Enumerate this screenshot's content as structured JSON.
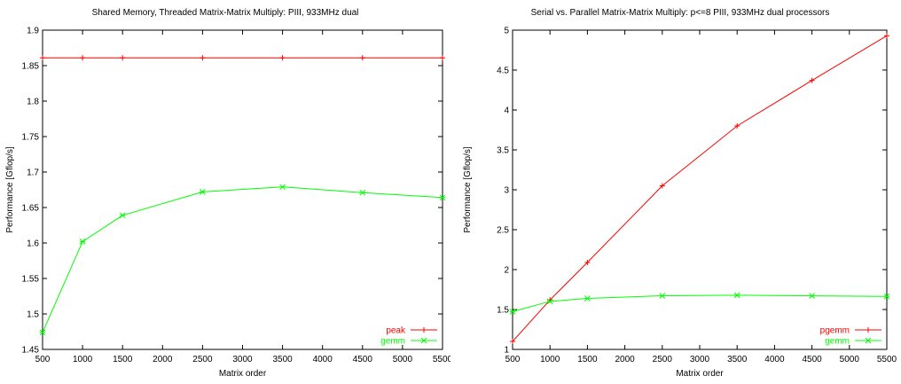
{
  "chart_data": [
    {
      "type": "line",
      "title": "Shared Memory, Threaded Matrix-Matrix Multiply: PIII, 933MHz dual",
      "xlabel": "Matrix order",
      "ylabel": "Performance [Gflop/s]",
      "xlim": [
        500,
        5500
      ],
      "ylim": [
        1.45,
        1.9
      ],
      "xticks": [
        "500",
        "1000",
        "1500",
        "2000",
        "2500",
        "3000",
        "3500",
        "4000",
        "4500",
        "5000",
        "5500"
      ],
      "yticks": [
        "1.45",
        "1.5",
        "1.55",
        "1.6",
        "1.65",
        "1.7",
        "1.75",
        "1.8",
        "1.85",
        "1.9"
      ],
      "grid": false,
      "legend_position": "bottom-right",
      "series": [
        {
          "name": "peak",
          "color": "#ff0000",
          "marker": "plus",
          "x": [
            500,
            1000,
            1500,
            2500,
            3500,
            4500,
            5500
          ],
          "y": [
            1.861,
            1.861,
            1.861,
            1.861,
            1.861,
            1.861,
            1.861
          ]
        },
        {
          "name": "gemm",
          "color": "#00ff00",
          "marker": "cross",
          "x": [
            500,
            1000,
            1500,
            2500,
            3500,
            4500,
            5500
          ],
          "y": [
            1.474,
            1.602,
            1.639,
            1.672,
            1.679,
            1.671,
            1.664
          ]
        }
      ]
    },
    {
      "type": "line",
      "title": "Serial vs. Parallel Matrix-Matrix Multiply: p<=8 PIII, 933MHz dual processors",
      "xlabel": "Matrix order",
      "ylabel": "Performance [Gflop/s]",
      "xlim": [
        500,
        5500
      ],
      "ylim": [
        1,
        5
      ],
      "xticks": [
        "500",
        "1000",
        "1500",
        "2000",
        "2500",
        "3000",
        "3500",
        "4000",
        "4500",
        "5000",
        "5500"
      ],
      "yticks": [
        "1",
        "1.5",
        "2",
        "2.5",
        "3",
        "3.5",
        "4",
        "4.5",
        "5"
      ],
      "grid": false,
      "legend_position": "bottom-right",
      "series": [
        {
          "name": "pgemm",
          "color": "#ff0000",
          "marker": "plus",
          "x": [
            500,
            1000,
            1500,
            2500,
            3500,
            4500,
            5500
          ],
          "y": [
            1.1,
            1.62,
            2.09,
            3.05,
            3.8,
            4.37,
            4.93
          ]
        },
        {
          "name": "gemm",
          "color": "#00ff00",
          "marker": "cross",
          "x": [
            500,
            1000,
            1500,
            2500,
            3500,
            4500,
            5500
          ],
          "y": [
            1.474,
            1.602,
            1.639,
            1.672,
            1.679,
            1.671,
            1.664
          ]
        }
      ]
    }
  ]
}
